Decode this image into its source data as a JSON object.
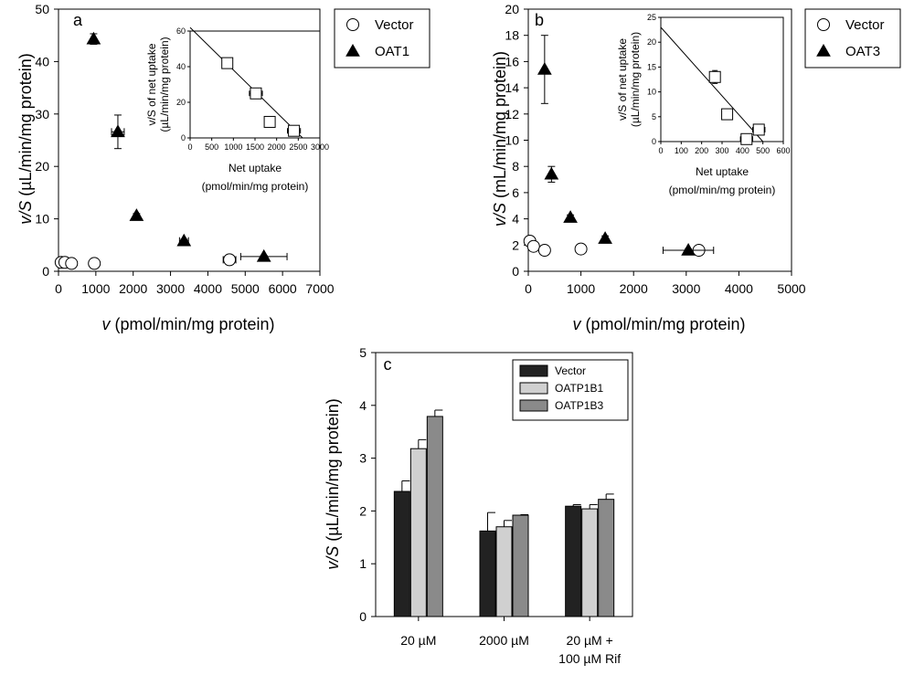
{
  "chart_data": [
    {
      "id": "a",
      "panel_label": "a",
      "type": "scatter",
      "xlabel": "v (pmol/min/mg protein)",
      "xlabel_italic_part": "v",
      "xlabel_rest": " (pmol/min/mg protein)",
      "ylabel_italic_part": "v/S",
      "ylabel_rest": " (µL/min/mg protein)",
      "xlim": [
        0,
        7000
      ],
      "ylim": [
        0,
        50
      ],
      "xticks": [
        "0",
        "1000",
        "2000",
        "3000",
        "4000",
        "5000",
        "6000",
        "7000"
      ],
      "yticks": [
        "0",
        "10",
        "20",
        "30",
        "40",
        "50"
      ],
      "legend_position": "outside-right",
      "series": [
        {
          "name": "Vector",
          "marker": "circle-open",
          "x": [
            70,
            170,
            350,
            960,
            4580
          ],
          "y": [
            1.7,
            1.7,
            1.5,
            1.5,
            2.2
          ],
          "xerr": [
            0,
            0,
            0,
            0,
            170
          ],
          "yerr": [
            0,
            0,
            0,
            0,
            0
          ]
        },
        {
          "name": "OAT1",
          "marker": "triangle-filled",
          "x": [
            940,
            1590,
            2090,
            3360,
            5500
          ],
          "y": [
            44.3,
            26.6,
            10.6,
            5.8,
            2.8
          ],
          "xerr": [
            0,
            170,
            50,
            120,
            620
          ],
          "yerr": [
            1.0,
            3.2,
            0.4,
            0.3,
            0.2
          ]
        }
      ],
      "inset": {
        "ylabel": "v/S of net uptake",
        "ylabel_units": "(µL/min/mg protein)",
        "xlabel": "Net uptake",
        "xlabel_units": "(pmol/min/mg protein)",
        "xlim": [
          0,
          3000
        ],
        "ylim": [
          0,
          60
        ],
        "xticks": [
          "0",
          "500",
          "1000",
          "1500",
          "2000",
          "2500",
          "3000"
        ],
        "yticks": [
          "0",
          "20",
          "40",
          "60"
        ],
        "points": {
          "x": [
            860,
            1520,
            1840,
            2400
          ],
          "y": [
            42,
            25,
            9,
            4
          ],
          "xerr": [
            0,
            150,
            0,
            150
          ],
          "yerr": [
            0,
            0,
            0,
            0
          ]
        },
        "fit_line": {
          "x": [
            0,
            2600
          ],
          "y": [
            62,
            0
          ]
        }
      }
    },
    {
      "id": "b",
      "panel_label": "b",
      "type": "scatter",
      "xlabel": "v (pmol/min/mg protein)",
      "xlabel_italic_part": "v",
      "xlabel_rest": " (pmol/min/mg protein)",
      "ylabel_italic_part": "v/S",
      "ylabel_rest": " (mL/min/mg protein)",
      "xlim": [
        0,
        5000
      ],
      "ylim": [
        0,
        20
      ],
      "xticks": [
        "0",
        "1000",
        "2000",
        "3000",
        "4000",
        "5000"
      ],
      "yticks": [
        "0",
        "2",
        "4",
        "6",
        "8",
        "10",
        "12",
        "14",
        "16",
        "18",
        "20"
      ],
      "legend_position": "outside-right",
      "series": [
        {
          "name": "Vector",
          "marker": "circle-open",
          "x": [
            30,
            100,
            310,
            1000,
            3240
          ],
          "y": [
            2.3,
            1.9,
            1.6,
            1.7,
            1.6
          ],
          "xerr": [
            0,
            0,
            0,
            70,
            0
          ],
          "yerr": [
            0,
            0,
            0,
            0,
            0
          ]
        },
        {
          "name": "OAT3",
          "marker": "triangle-filled",
          "x": [
            310,
            440,
            800,
            1460,
            3040
          ],
          "y": [
            15.4,
            7.4,
            4.1,
            2.5,
            1.6
          ],
          "xerr": [
            0,
            0,
            0,
            0,
            480
          ],
          "yerr": [
            2.6,
            0.6,
            0.2,
            0.2,
            0.1
          ]
        }
      ],
      "inset": {
        "ylabel": "v/S of net uptake",
        "ylabel_units": "(µL/min/mg protein)",
        "xlabel": "Net uptake",
        "xlabel_units": "(pmol/min/mg protein)",
        "xlim": [
          0,
          600
        ],
        "ylim": [
          0,
          25
        ],
        "xticks": [
          "0",
          "100",
          "200",
          "300",
          "400",
          "500",
          "600"
        ],
        "yticks": [
          "0",
          "5",
          "10",
          "15",
          "20",
          "25"
        ],
        "points": {
          "x": [
            265,
            325,
            420,
            480
          ],
          "y": [
            13,
            5.5,
            0.5,
            2.4
          ],
          "xerr": [
            25,
            15,
            30,
            30
          ],
          "yerr": [
            1.3,
            0,
            0,
            0
          ]
        },
        "fit_line": {
          "x": [
            0,
            500
          ],
          "y": [
            23,
            0
          ]
        }
      }
    },
    {
      "id": "c",
      "panel_label": "c",
      "type": "bar",
      "ylabel_italic_part": "v/S",
      "ylabel_rest": " (µL/min/mg protein)",
      "ylim": [
        0,
        5
      ],
      "yticks": [
        "0",
        "1",
        "2",
        "3",
        "4",
        "5"
      ],
      "categories": [
        "20 µM",
        "2000 µM",
        "20 µM +|100 µM Rif"
      ],
      "legend_position": "top-right",
      "series": [
        {
          "name": "Vector",
          "color": "#222222",
          "values": [
            2.37,
            1.62,
            2.09
          ],
          "err": [
            0.2,
            0.35,
            0.03
          ]
        },
        {
          "name": "OATP1B1",
          "color": "#d0d0d0",
          "values": [
            3.18,
            1.7,
            2.04
          ],
          "err": [
            0.17,
            0.12,
            0.08
          ]
        },
        {
          "name": "OATP1B3",
          "color": "#8a8a8a",
          "values": [
            3.79,
            1.92,
            2.22
          ],
          "err": [
            0.12,
            0.01,
            0.1
          ]
        }
      ]
    }
  ]
}
